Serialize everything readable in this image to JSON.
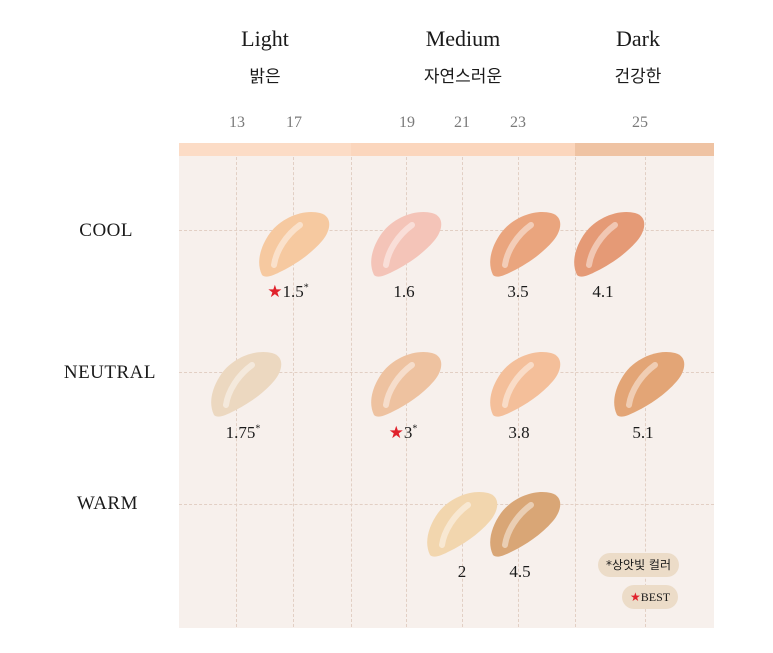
{
  "groups": [
    {
      "en": "Light",
      "ko": "밝은"
    },
    {
      "en": "Medium",
      "ko": "자연스러운"
    },
    {
      "en": "Dark",
      "ko": "건강한"
    }
  ],
  "shade_numbers": [
    "13",
    "17",
    "19",
    "21",
    "23",
    "25"
  ],
  "rows": [
    "COOL",
    "NEUTRAL",
    "WARM"
  ],
  "band_colors": [
    "#fcdcc6",
    "#fbd6bd",
    "#efc3a3"
  ],
  "swatches": [
    {
      "id": "1.5",
      "label": "1.5",
      "star": true,
      "note": "*",
      "color": "#f6c9a0",
      "row": "COOL"
    },
    {
      "id": "1.6",
      "label": "1.6",
      "star": false,
      "note": "",
      "color": "#f4c4b8",
      "row": "COOL"
    },
    {
      "id": "3.5",
      "label": "3.5",
      "star": false,
      "note": "",
      "color": "#eaa57e",
      "row": "COOL"
    },
    {
      "id": "4.1",
      "label": "4.1",
      "star": false,
      "note": "",
      "color": "#e59a76",
      "row": "COOL"
    },
    {
      "id": "1.75",
      "label": "1.75",
      "star": false,
      "note": "*",
      "color": "#ecd8c0",
      "row": "NEUTRAL"
    },
    {
      "id": "3",
      "label": "3",
      "star": true,
      "note": "*",
      "color": "#eec2a0",
      "row": "NEUTRAL"
    },
    {
      "id": "3.8",
      "label": "3.8",
      "star": false,
      "note": "",
      "color": "#f4bf9a",
      "row": "NEUTRAL"
    },
    {
      "id": "5.1",
      "label": "5.1",
      "star": false,
      "note": "",
      "color": "#e3a576",
      "row": "NEUTRAL"
    },
    {
      "id": "2",
      "label": "2",
      "star": false,
      "note": "",
      "color": "#f2d6ae",
      "row": "WARM"
    },
    {
      "id": "4.5",
      "label": "4.5",
      "star": false,
      "note": "",
      "color": "#d9a676",
      "row": "WARM"
    }
  ],
  "star_glyph": "★",
  "legend": {
    "note": "*상앗빛 컬러",
    "best": "BEST"
  }
}
